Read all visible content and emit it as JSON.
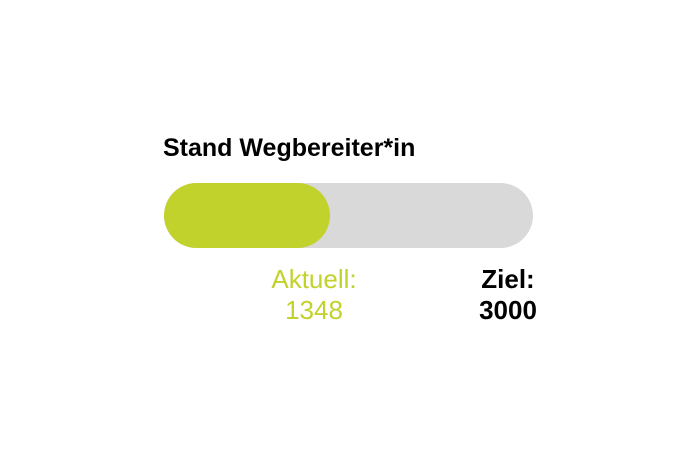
{
  "title": "Stand Wegbereiter*in",
  "progress": {
    "current_label": "Aktuell:",
    "current_value": "1348",
    "target_label": "Ziel:",
    "target_value": "3000",
    "current": 1348,
    "target": 3000
  },
  "colors": {
    "accent_green": "#c2d22d",
    "track_gray": "#d9d9d9",
    "text_black": "#000000",
    "background": "#ffffff"
  },
  "chart_data": {
    "type": "bar",
    "orientation": "horizontal",
    "title": "Stand Wegbereiter*in",
    "categories": [
      "Wegbereiter*in"
    ],
    "values": [
      1348
    ],
    "target": 3000,
    "xlim": [
      0,
      3000
    ],
    "percent_complete": 44.9,
    "grid": false,
    "legend": false,
    "annotations": [
      "Aktuell: 1348",
      "Ziel: 3000"
    ]
  }
}
